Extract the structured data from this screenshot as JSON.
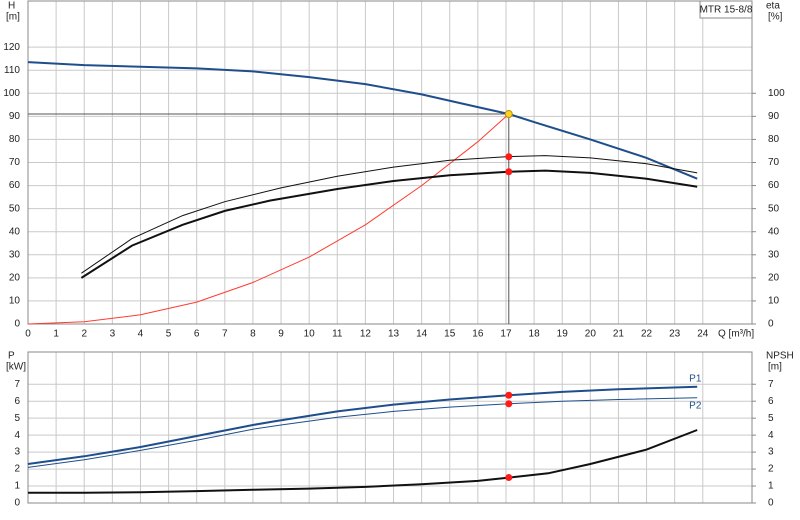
{
  "chart_data": [
    {
      "type": "line",
      "title": "MTR 15-8/8",
      "xlabel": "Q [m³/h]",
      "ylabel": "H",
      "yunit": "[m]",
      "y2label": "eta",
      "y2unit": "[%]",
      "xlim": [
        0,
        25.75
      ],
      "xticks": [
        0,
        1,
        2,
        3,
        4,
        5,
        6,
        7,
        8,
        9,
        10,
        11,
        12,
        13,
        14,
        15,
        16,
        17,
        18,
        19,
        20,
        21,
        22,
        23,
        24
      ],
      "xtick_labels": true,
      "ylim": [
        0,
        140
      ],
      "yticks": [
        0,
        10,
        20,
        30,
        40,
        50,
        60,
        70,
        80,
        90,
        100,
        110,
        120
      ],
      "y2lim": [
        0,
        140
      ],
      "y2ticks": [
        0,
        10,
        20,
        30,
        40,
        50,
        60,
        70,
        80,
        90,
        100
      ],
      "grid": true,
      "series": [
        {
          "color": "#1f4e8c",
          "width": 2,
          "x": [
            0,
            2,
            4,
            6,
            8,
            10,
            12,
            14,
            16,
            17.1,
            18,
            20,
            22,
            23.8
          ],
          "values": [
            113.5,
            112.2,
            111.5,
            110.8,
            109.5,
            107,
            104,
            99.5,
            94,
            91,
            87.5,
            80,
            72,
            63
          ]
        },
        {
          "color": "#ff3b30",
          "width": 1,
          "x": [
            0,
            2,
            4,
            6,
            8,
            10,
            12,
            14,
            16,
            17.1
          ],
          "values": [
            0,
            1,
            4,
            9.5,
            18,
            29,
            43,
            60,
            79,
            91
          ]
        },
        {
          "color": "#111111",
          "width": 1,
          "axis": "y2",
          "x": [
            1.9,
            3.7,
            5.5,
            7,
            9,
            11,
            13,
            15,
            17,
            18.4,
            20,
            22,
            23.8
          ],
          "values": [
            22,
            37,
            47,
            53,
            59,
            64,
            68,
            71,
            72.5,
            73,
            72,
            69.5,
            65.5
          ]
        },
        {
          "color": "#111111",
          "width": 2,
          "axis": "y2",
          "x": [
            1.9,
            3.7,
            5.5,
            7,
            8.6,
            11,
            13,
            15,
            17.1,
            18.4,
            20,
            22,
            23.8
          ],
          "values": [
            20,
            34,
            43,
            49,
            53.5,
            58.5,
            62,
            64.5,
            66,
            66.5,
            65.5,
            63,
            59.5
          ]
        }
      ],
      "points": [
        {
          "x": 17.1,
          "y": 91,
          "color": "#ffd21f",
          "crosshair": true
        },
        {
          "x": 17.1,
          "y": 72.5,
          "color": "#ff1a1a",
          "axis": "y2"
        },
        {
          "x": 17.1,
          "y": 66,
          "color": "#ff1a1a",
          "axis": "y2"
        }
      ]
    },
    {
      "type": "line",
      "ylabel": "P",
      "yunit": "[kW]",
      "y2label": "NPSH",
      "y2unit": "[m]",
      "xlim": [
        0,
        25.75
      ],
      "xticks": [
        0,
        1,
        2,
        3,
        4,
        5,
        6,
        7,
        8,
        9,
        10,
        11,
        12,
        13,
        14,
        15,
        16,
        17,
        18,
        19,
        20,
        21,
        22,
        23,
        24
      ],
      "xtick_labels": false,
      "ylim": [
        0,
        8.9
      ],
      "yticks": [
        0,
        1,
        2,
        3,
        4,
        5,
        6,
        7
      ],
      "y2lim": [
        0,
        8.9
      ],
      "y2ticks": [
        0,
        1,
        2,
        3,
        4,
        5,
        6,
        7
      ],
      "grid": true,
      "series": [
        {
          "name": "P1",
          "color": "#1f4e8c",
          "width": 2,
          "x": [
            0,
            2,
            4,
            6,
            8,
            8.7,
            11,
            13,
            15,
            17.1,
            19,
            21,
            23.8
          ],
          "values": [
            2.3,
            2.75,
            3.3,
            3.95,
            4.6,
            4.8,
            5.4,
            5.8,
            6.1,
            6.35,
            6.55,
            6.7,
            6.85
          ]
        },
        {
          "name": "P2",
          "color": "#1f4e8c",
          "width": 1,
          "x": [
            0,
            2,
            4,
            6,
            8,
            9,
            11,
            13,
            15,
            17.1,
            19,
            21,
            23.8
          ],
          "values": [
            2.1,
            2.55,
            3.1,
            3.7,
            4.35,
            4.6,
            5.05,
            5.4,
            5.65,
            5.85,
            6.0,
            6.1,
            6.2
          ]
        },
        {
          "color": "#111111",
          "width": 2,
          "axis": "y2",
          "x": [
            0,
            2,
            4,
            6,
            8,
            10,
            12,
            14,
            16,
            17.1,
            18.5,
            20,
            22,
            23.8
          ],
          "values": [
            0.6,
            0.6,
            0.63,
            0.7,
            0.78,
            0.85,
            0.95,
            1.1,
            1.3,
            1.5,
            1.75,
            2.3,
            3.15,
            4.3
          ]
        }
      ],
      "points": [
        {
          "x": 17.1,
          "y": 6.35,
          "color": "#ff1a1a"
        },
        {
          "x": 17.1,
          "y": 5.85,
          "color": "#ff1a1a"
        },
        {
          "x": 17.1,
          "y": 1.5,
          "color": "#ff1a1a",
          "axis": "y2"
        }
      ]
    }
  ]
}
